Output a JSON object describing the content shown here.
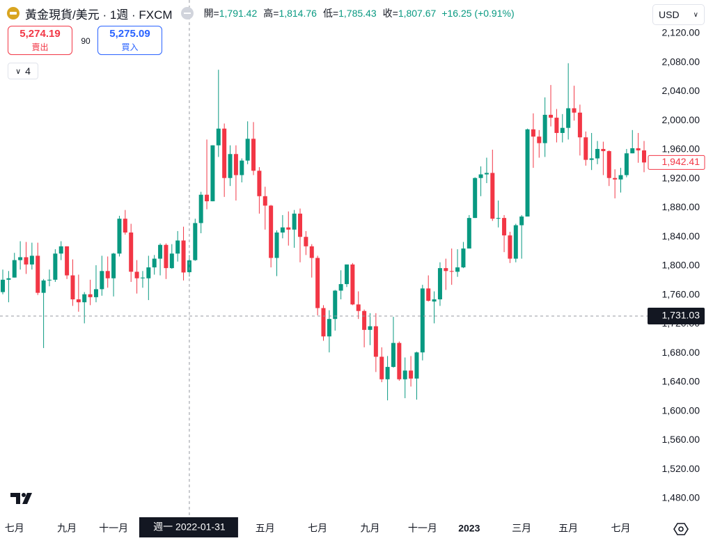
{
  "header": {
    "title": "黃金現貨/美元 · 1週 · FXCM",
    "ohlc": [
      {
        "label": "開=",
        "value": "1,791.42"
      },
      {
        "label": "高=",
        "value": "1,814.76"
      },
      {
        "label": "低=",
        "value": "1,785.43"
      },
      {
        "label": "收=",
        "value": "1,807.67"
      }
    ],
    "change": "+16.25 (+0.91%)"
  },
  "trade": {
    "sell_price": "5,274.19",
    "sell_label": "賣出",
    "spread": "90",
    "buy_price": "5,275.09",
    "buy_label": "買入"
  },
  "indicators_count": "4",
  "currency": "USD",
  "chart_data": {
    "type": "candlestick",
    "categories": [
      null,
      null,
      "七月",
      null,
      null,
      null,
      null,
      null,
      null,
      null,
      null,
      "九月",
      null,
      null,
      null,
      null,
      null,
      null,
      null,
      "十一月",
      null,
      null,
      null,
      null,
      null,
      null,
      null,
      null,
      null,
      null,
      null,
      null,
      null,
      null,
      null,
      null,
      null,
      null,
      null,
      null,
      null,
      null,
      null,
      null,
      null,
      "五月",
      null,
      null,
      null,
      null,
      null,
      null,
      null,
      null,
      "七月",
      null,
      null,
      null,
      null,
      null,
      null,
      null,
      null,
      "九月",
      null,
      null,
      null,
      null,
      null,
      null,
      null,
      null,
      "十一月",
      null,
      null,
      null,
      null,
      null,
      null,
      null,
      "2023",
      null,
      null,
      null,
      null,
      null,
      null,
      null,
      null,
      "三月",
      null,
      null,
      null,
      null,
      null,
      null,
      null,
      "五月",
      null,
      null,
      null,
      null,
      null,
      null,
      null,
      null,
      "七月",
      null,
      null,
      null,
      null
    ],
    "open": [
      1764,
      1781,
      1784,
      1808,
      1812,
      1802,
      1814,
      1763,
      1780,
      1781,
      1817,
      1827,
      1787,
      1754,
      1750,
      1761,
      1757,
      1768,
      1793,
      1783,
      1817,
      1865,
      1846,
      1792,
      1783,
      1783,
      1798,
      1810,
      1829,
      1797,
      1817,
      1835,
      1791.42,
      1808,
      1859,
      1898,
      1889,
      1966,
      1989,
      1921,
      1954,
      1925,
      1945,
      1975,
      1931,
      1896,
      1883,
      1811,
      1846,
      1853,
      1850,
      1872,
      1840,
      1827,
      1811,
      1742,
      1703,
      1727,
      1766,
      1775,
      1802,
      1747,
      1738,
      1712,
      1717,
      1675,
      1644,
      1661,
      1694,
      1644,
      1656,
      1645,
      1681,
      1769,
      1751,
      1754,
      1797,
      1793,
      1792,
      1798,
      1824,
      1866,
      1921,
      1926,
      1928,
      1865,
      1866,
      1842,
      1810,
      1856,
      1868,
      1988,
      1978,
      1969,
      2008,
      2004,
      1983,
      1990,
      2017,
      2011,
      1977,
      1946,
      1948,
      1961,
      1958,
      1921,
      1919,
      1925,
      1955,
      1962,
      1959
    ],
    "high": [
      1795,
      1793,
      1818,
      1834,
      1833,
      1832,
      1832,
      1782,
      1795,
      1823,
      1834,
      1827,
      1809,
      1788,
      1764,
      1781,
      1801,
      1814,
      1813,
      1818,
      1869,
      1877,
      1858,
      1808,
      1793,
      1814,
      1815,
      1831,
      1831,
      1830,
      1848,
      1854,
      1814.76,
      1865,
      1902,
      1974,
      1966,
      2070,
      1996,
      1966,
      1966,
      1948,
      1999,
      1998,
      1936,
      1909,
      1884,
      1849,
      1870,
      1875,
      1877,
      1879,
      1848,
      1830,
      1814,
      1746,
      1739,
      1767,
      1794,
      1802,
      1804,
      1765,
      1740,
      1735,
      1735,
      1688,
      1676,
      1730,
      1696,
      1674,
      1676,
      1682,
      1774,
      1787,
      1765,
      1805,
      1810,
      1824,
      1823,
      1833,
      1870,
      1922,
      1937,
      1949,
      1960,
      1890,
      1870,
      1847,
      1858,
      1870,
      1989,
      2010,
      1987,
      2032,
      2049,
      2016,
      2009,
      2079,
      2048,
      2022,
      1985,
      1983,
      1972,
      1971,
      1959,
      1933,
      1935,
      1961,
      1987,
      1983,
      1972
    ],
    "low": [
      1761,
      1750,
      1784,
      1795,
      1789,
      1795,
      1760,
      1687,
      1772,
      1778,
      1808,
      1782,
      1745,
      1737,
      1721,
      1746,
      1750,
      1759,
      1770,
      1758,
      1813,
      1843,
      1778,
      1762,
      1770,
      1753,
      1788,
      1787,
      1782,
      1796,
      1806,
      1780,
      1785.43,
      1807,
      1845,
      1878,
      1889,
      1950,
      1895,
      1910,
      1890,
      1915,
      1940,
      1925,
      1872,
      1850,
      1798,
      1786,
      1838,
      1828,
      1825,
      1805,
      1815,
      1784,
      1732,
      1697,
      1681,
      1711,
      1754,
      1771,
      1746,
      1727,
      1688,
      1691,
      1654,
      1640,
      1615,
      1660,
      1642,
      1618,
      1634,
      1616,
      1670,
      1751,
      1721,
      1745,
      1767,
      1774,
      1785,
      1797,
      1824,
      1866,
      1896,
      1914,
      1862,
      1853,
      1819,
      1804,
      1805,
      1810,
      1868,
      1935,
      1949,
      1950,
      1992,
      1970,
      1970,
      1974,
      2000,
      1952,
      1938,
      1932,
      1940,
      1925,
      1910,
      1893,
      1901,
      1922,
      1955,
      1942,
      1929
    ],
    "close": [
      1781,
      1783,
      1808,
      1812,
      1802,
      1814,
      1763,
      1780,
      1781,
      1817,
      1827,
      1787,
      1754,
      1750,
      1761,
      1757,
      1768,
      1793,
      1783,
      1817,
      1865,
      1846,
      1792,
      1783,
      1784,
      1798,
      1810,
      1829,
      1797,
      1817,
      1835,
      1791,
      1807.67,
      1859,
      1898,
      1889,
      1966,
      1989,
      1921,
      1954,
      1925,
      1945,
      1975,
      1931,
      1896,
      1883,
      1811,
      1846,
      1853,
      1850,
      1872,
      1840,
      1827,
      1811,
      1742,
      1703,
      1727,
      1766,
      1775,
      1802,
      1747,
      1738,
      1712,
      1717,
      1675,
      1644,
      1661,
      1694,
      1644,
      1656,
      1645,
      1681,
      1769,
      1752,
      1754,
      1797,
      1793,
      1792,
      1798,
      1824,
      1866,
      1921,
      1926,
      1928,
      1865,
      1866,
      1842,
      1810,
      1856,
      1868,
      1988,
      1978,
      1969,
      2008,
      2004,
      1983,
      1990,
      2017,
      2011,
      1977,
      1946,
      1948,
      1961,
      1958,
      1921,
      1919,
      1925,
      1955,
      1962,
      1959,
      1942.41
    ],
    "up_color": "#089981",
    "down_color": "#f23645",
    "ylim": [
      1457,
      2166
    ],
    "yticks": [
      {
        "value": 1480,
        "label": "1,480.00"
      },
      {
        "value": 1520,
        "label": "1,520.00"
      },
      {
        "value": 1560,
        "label": "1,560.00"
      },
      {
        "value": 1600,
        "label": "1,600.00"
      },
      {
        "value": 1640,
        "label": "1,640.00"
      },
      {
        "value": 1680,
        "label": "1,680.00"
      },
      {
        "value": 1720,
        "label": "1,720.00"
      },
      {
        "value": 1760,
        "label": "1,760.00"
      },
      {
        "value": 1800,
        "label": "1,800.00"
      },
      {
        "value": 1840,
        "label": "1,840.00"
      },
      {
        "value": 1880,
        "label": "1,880.00"
      },
      {
        "value": 1920,
        "label": "1,920.00"
      },
      {
        "value": 1960,
        "label": "1,960.00"
      },
      {
        "value": 2000,
        "label": "2,000.00"
      },
      {
        "value": 2040,
        "label": "2,040.00"
      },
      {
        "value": 2080,
        "label": "2,080.00"
      },
      {
        "value": 2120,
        "label": "2,120.00"
      }
    ],
    "last_price": {
      "value": 1942.41,
      "label": "1,942.41"
    },
    "crosshair": {
      "price": {
        "value": 1731.03,
        "label": "1,731.03"
      },
      "label": "週一 2022-01-31"
    }
  }
}
